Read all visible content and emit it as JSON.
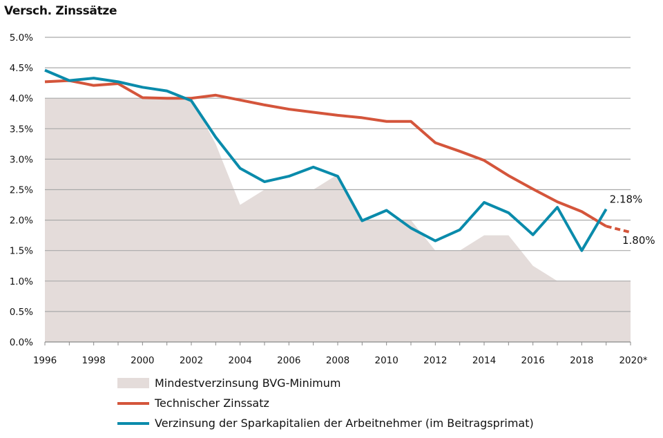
{
  "chart_data": {
    "type": "line",
    "title": "Versch. Zinssätze",
    "x": [
      1996,
      1997,
      1998,
      1999,
      2000,
      2001,
      2002,
      2003,
      2004,
      2005,
      2006,
      2007,
      2008,
      2009,
      2010,
      2011,
      2012,
      2013,
      2014,
      2015,
      2016,
      2017,
      2018,
      2019,
      2020
    ],
    "x_tick_labels": [
      "1996",
      "1998",
      "2000",
      "2002",
      "2004",
      "2006",
      "2008",
      "2010",
      "2012",
      "2014",
      "2016",
      "2018",
      "2020*"
    ],
    "y_tick_labels": [
      "0.0%",
      "0.5%",
      "1.0%",
      "1.5%",
      "2.0%",
      "2.5%",
      "3.0%",
      "3.5%",
      "4.0%",
      "4.5%",
      "5.0%"
    ],
    "ylim": [
      0,
      5
    ],
    "grid": true,
    "legend_position": "bottom",
    "series": [
      {
        "name": "Mindestverzinsung BVG-Minimum",
        "kind": "area",
        "color": "#e4dcda",
        "values": [
          4.0,
          4.0,
          4.0,
          4.0,
          4.0,
          4.0,
          4.0,
          3.25,
          2.25,
          2.5,
          2.5,
          2.5,
          2.75,
          2.0,
          2.0,
          2.0,
          1.5,
          1.5,
          1.75,
          1.75,
          1.25,
          1.0,
          1.0,
          1.0,
          1.0
        ]
      },
      {
        "name": "Technischer Zinssatz",
        "kind": "line",
        "color": "#d4553b",
        "values": [
          4.27,
          4.29,
          4.21,
          4.24,
          4.01,
          4.0,
          4.0,
          4.05,
          3.97,
          3.89,
          3.82,
          3.77,
          3.72,
          3.68,
          3.62,
          3.62,
          3.27,
          3.13,
          2.98,
          2.73,
          2.51,
          2.3,
          2.14,
          1.9,
          1.8
        ],
        "dashed_from": 2019
      },
      {
        "name": "Verzinsung der Sparkapitalien der Arbeitnehmer (im Beitragsprimat)",
        "kind": "line",
        "color": "#0a8bab",
        "values": [
          4.46,
          4.29,
          4.33,
          4.27,
          4.18,
          4.12,
          3.96,
          3.36,
          2.85,
          2.63,
          2.72,
          2.87,
          2.72,
          1.99,
          2.16,
          1.87,
          1.66,
          1.84,
          2.29,
          2.12,
          1.76,
          2.21,
          1.5,
          2.18,
          null
        ]
      }
    ],
    "annotations": [
      {
        "text": "2.18%",
        "x": 2019,
        "y": 2.18
      },
      {
        "text": "1.80%",
        "x": 2020,
        "y": 1.8
      }
    ]
  }
}
